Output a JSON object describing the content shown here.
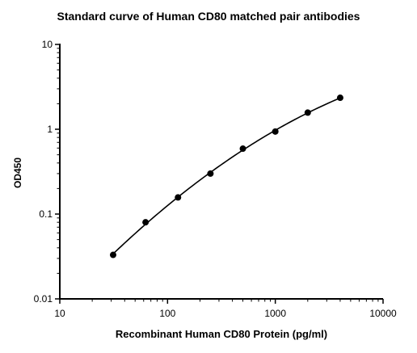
{
  "chart_data": {
    "type": "scatter",
    "title": "Standard curve of Human CD80 matched pair antibodies",
    "xlabel": "Recombinant Human CD80 Protein (pg/ml)",
    "ylabel": "OD450",
    "x_scale": "log",
    "y_scale": "log",
    "xlim": [
      10,
      10000
    ],
    "ylim": [
      0.01,
      10
    ],
    "x_ticks": [
      "10",
      "100",
      "1000",
      "10000"
    ],
    "y_ticks": [
      "0.01",
      "0.1",
      "1",
      "10"
    ],
    "grid": false,
    "legend": "none",
    "fit_curve": true,
    "colors": {
      "points": "#000000",
      "curve": "#000000",
      "axis": "#000000"
    },
    "series": [
      {
        "x": [
          31.25,
          62.5,
          125,
          250,
          500,
          1000,
          2000,
          4000
        ],
        "y": [
          0.033,
          0.08,
          0.157,
          0.3,
          0.59,
          0.94,
          1.57,
          2.35
        ]
      }
    ]
  }
}
